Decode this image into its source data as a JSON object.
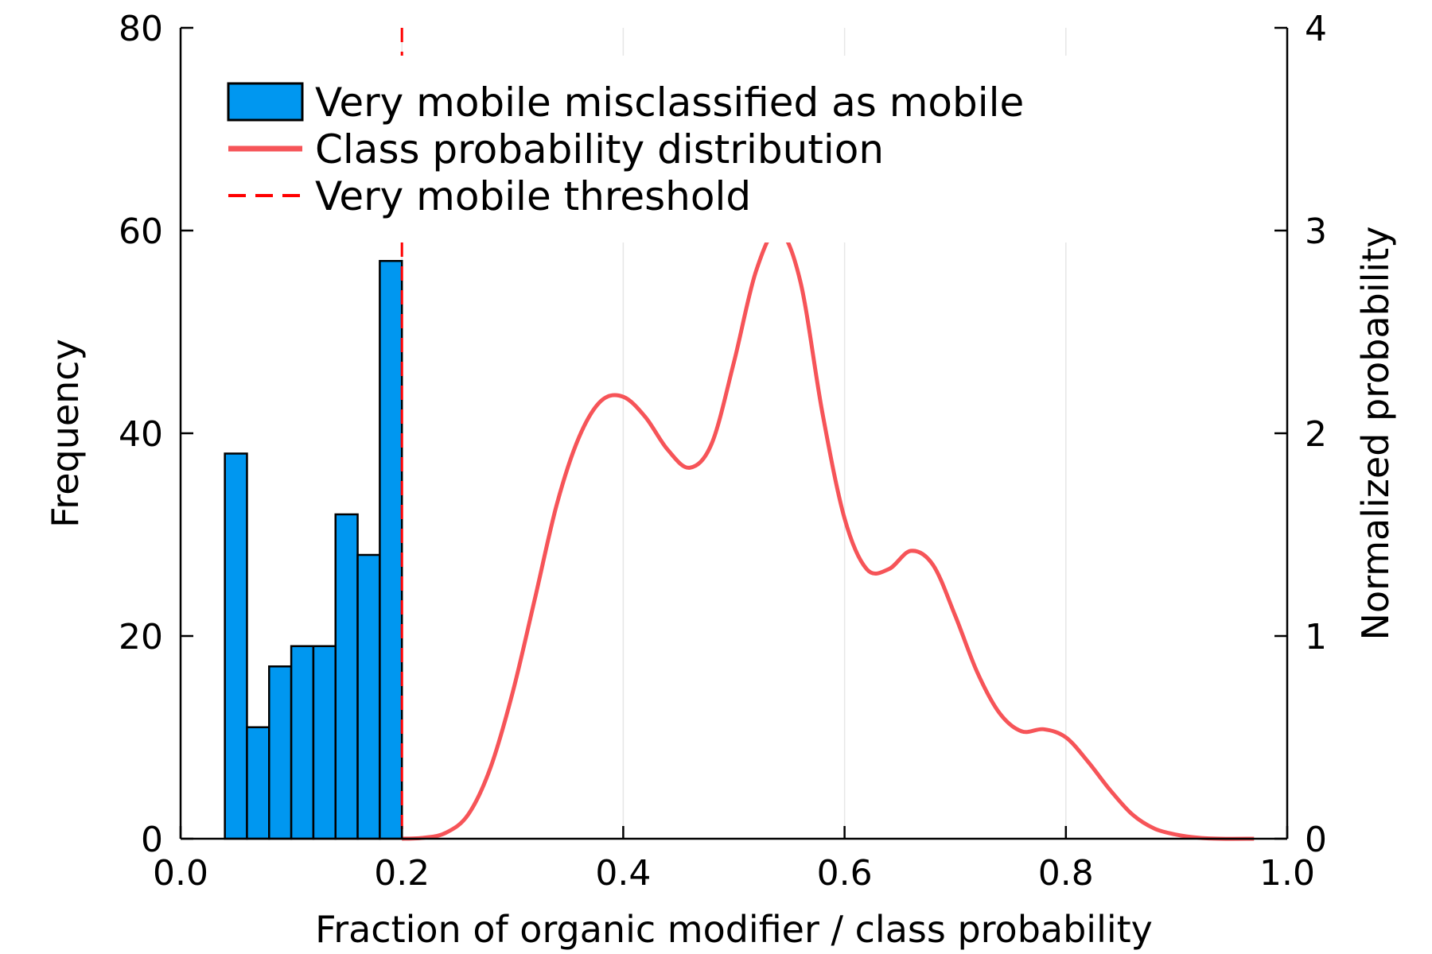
{
  "chart_data": {
    "type": "bar",
    "xlabel": "Fraction of organic modifier / class probability",
    "ylabel": "Frequency",
    "y2label": "Normalized probability",
    "xlim": [
      0.0,
      1.0
    ],
    "ylim": [
      0,
      80
    ],
    "y2lim": [
      0,
      4
    ],
    "xticks": [
      "0.0",
      "0.2",
      "0.4",
      "0.6",
      "0.8",
      "1.0"
    ],
    "yticks": [
      "0",
      "20",
      "40",
      "60",
      "80"
    ],
    "y2ticks": [
      "0",
      "1",
      "2",
      "3",
      "4"
    ],
    "grid": "vertical",
    "legend_position": "top-left",
    "histogram": {
      "name": "Very mobile misclassified as mobile",
      "color": "#0097f0",
      "bin_edges": [
        0.04,
        0.06,
        0.08,
        0.1,
        0.12,
        0.14,
        0.16,
        0.18,
        0.2
      ],
      "values": [
        38,
        11,
        17,
        19,
        19,
        32,
        28,
        57
      ]
    },
    "density": {
      "name": "Class probability distribution",
      "color": "#f65458",
      "axis": "right",
      "x": [
        0.2,
        0.22,
        0.24,
        0.26,
        0.28,
        0.3,
        0.32,
        0.34,
        0.36,
        0.38,
        0.4,
        0.42,
        0.44,
        0.46,
        0.48,
        0.5,
        0.52,
        0.54,
        0.56,
        0.58,
        0.6,
        0.62,
        0.64,
        0.66,
        0.68,
        0.7,
        0.72,
        0.74,
        0.76,
        0.78,
        0.8,
        0.82,
        0.84,
        0.86,
        0.88,
        0.9,
        0.92,
        0.94,
        0.97
      ],
      "y": [
        0.0,
        0.005,
        0.03,
        0.12,
        0.35,
        0.72,
        1.18,
        1.65,
        1.98,
        2.16,
        2.18,
        2.08,
        1.92,
        1.83,
        1.95,
        2.35,
        2.8,
        3.0,
        2.75,
        2.1,
        1.58,
        1.33,
        1.33,
        1.42,
        1.35,
        1.1,
        0.82,
        0.62,
        0.53,
        0.54,
        0.5,
        0.38,
        0.24,
        0.12,
        0.05,
        0.02,
        0.005,
        0.0,
        0.0
      ]
    },
    "threshold": {
      "name": "Very mobile threshold",
      "color": "#ff0000",
      "x": 0.2
    }
  }
}
